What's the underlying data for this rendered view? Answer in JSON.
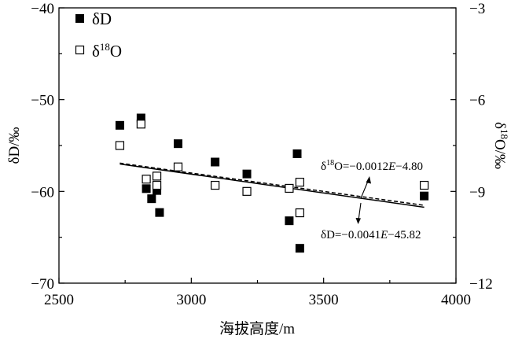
{
  "chart_data": {
    "type": "scatter",
    "xlabel": "海拔高度/m",
    "ylabel_left": "δD/‰",
    "ylabel_right": "δ18O/‰",
    "xlim": [
      2500,
      4000
    ],
    "ylim_left": [
      -70,
      -40
    ],
    "ylim_right": [
      -12,
      -3
    ],
    "x_ticks": [
      2500,
      3000,
      3500,
      4000
    ],
    "y_ticks_left": [
      -70,
      -60,
      -50,
      -40
    ],
    "y_ticks_right": [
      -12,
      -9,
      -6,
      -3
    ],
    "legend_placement": "top-left",
    "grid": false,
    "series": [
      {
        "name": "δD",
        "axis": "left",
        "marker": "filled-square",
        "points": [
          [
            2730,
            -52.8
          ],
          [
            2810,
            -52.0
          ],
          [
            2830,
            -59.7
          ],
          [
            2850,
            -60.8
          ],
          [
            2870,
            -59.9
          ],
          [
            2880,
            -62.3
          ],
          [
            2950,
            -54.8
          ],
          [
            3090,
            -56.8
          ],
          [
            3210,
            -58.1
          ],
          [
            3370,
            -63.2
          ],
          [
            3400,
            -55.9
          ],
          [
            3410,
            -66.2
          ],
          [
            3880,
            -60.5
          ]
        ]
      },
      {
        "name": "δ18O",
        "axis": "right",
        "marker": "open-square",
        "points": [
          [
            2730,
            -7.5
          ],
          [
            2810,
            -6.8
          ],
          [
            2830,
            -8.6
          ],
          [
            2870,
            -8.8
          ],
          [
            2870,
            -8.5
          ],
          [
            2950,
            -8.2
          ],
          [
            3090,
            -8.8
          ],
          [
            3210,
            -9.0
          ],
          [
            3370,
            -8.9
          ],
          [
            3410,
            -8.7
          ],
          [
            3410,
            -9.7
          ],
          [
            3880,
            -8.8
          ]
        ]
      }
    ],
    "trendlines": [
      {
        "series": "δD",
        "axis": "left",
        "style": "solid",
        "slope": -0.0041,
        "intercept": -45.82,
        "x_range": [
          2730,
          3880
        ]
      },
      {
        "series": "δ18O",
        "axis": "right",
        "style": "dashed",
        "slope": -0.0012,
        "intercept": -4.8,
        "x_range": [
          2730,
          3880
        ]
      }
    ],
    "annotations": {
      "o18": {
        "pre": "δ",
        "sup": "18",
        "mid": "O=−0.0012",
        "var": "E",
        "post": "−4.80"
      },
      "dd": {
        "pre": "δD=−0.0041",
        "var": "E",
        "post": "−45.82"
      }
    },
    "legend": {
      "dd": {
        "label": "δD"
      },
      "o18": {
        "pre": "δ",
        "sup": "18",
        "post": "O"
      }
    },
    "ylabel_right_parts": {
      "pre": "δ",
      "sup": "18",
      "post": "O/‰"
    }
  }
}
